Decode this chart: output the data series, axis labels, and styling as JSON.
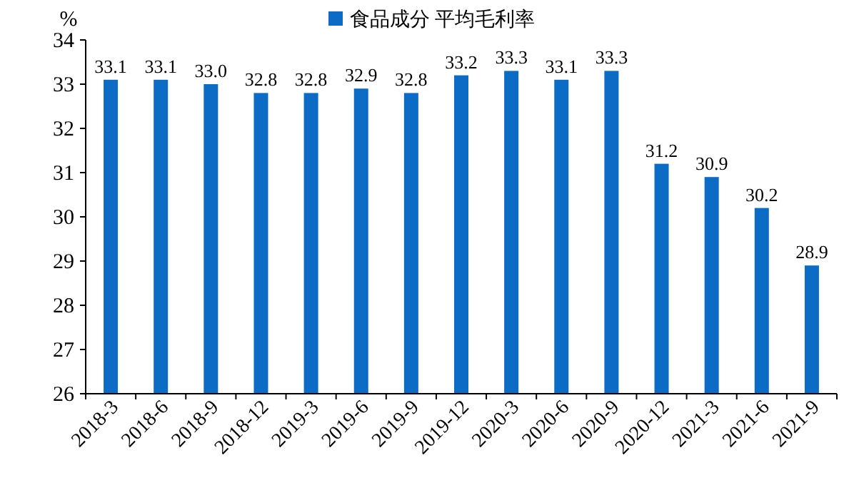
{
  "chart_data": {
    "type": "bar",
    "ylabel": "%",
    "legend": "top",
    "categories": [
      "2018-3",
      "2018-6",
      "2018-9",
      "2018-12",
      "2019-3",
      "2019-6",
      "2019-9",
      "2019-12",
      "2020-3",
      "2020-6",
      "2020-9",
      "2020-12",
      "2021-3",
      "2021-6",
      "2021-9"
    ],
    "series": [
      {
        "name": "食品成分 平均毛利率",
        "color": "#0c6bc4",
        "values": [
          33.1,
          33.1,
          33.0,
          32.8,
          32.8,
          32.9,
          32.8,
          33.2,
          33.3,
          33.1,
          33.3,
          31.2,
          30.9,
          30.2,
          28.9
        ]
      }
    ],
    "value_labels": [
      "33.1",
      "33.1",
      "33.0",
      "32.8",
      "32.8",
      "32.9",
      "32.8",
      "33.2",
      "33.3",
      "33.1",
      "33.3",
      "31.2",
      "30.9",
      "30.2",
      "28.9"
    ],
    "ylim": [
      26,
      34
    ],
    "yticks": [
      26,
      27,
      28,
      29,
      30,
      31,
      32,
      33,
      34
    ],
    "grid": false
  }
}
